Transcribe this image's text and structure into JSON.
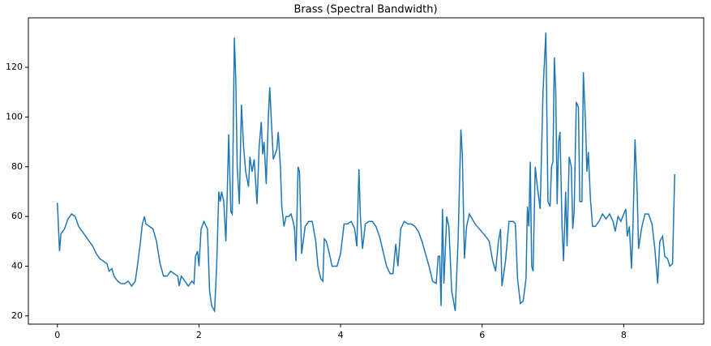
{
  "chart_data": {
    "type": "line",
    "title": "Brass (Spectral Bandwidth)",
    "x": [
      0,
      0.03,
      0.05,
      0.1,
      0.15,
      0.2,
      0.25,
      0.3,
      0.4,
      0.5,
      0.55,
      0.6,
      0.65,
      0.7,
      0.73,
      0.77,
      0.8,
      0.85,
      0.9,
      0.95,
      1.0,
      1.05,
      1.1,
      1.13,
      1.17,
      1.2,
      1.23,
      1.25,
      1.3,
      1.35,
      1.4,
      1.45,
      1.5,
      1.55,
      1.6,
      1.65,
      1.7,
      1.72,
      1.75,
      1.8,
      1.85,
      1.9,
      1.93,
      1.95,
      1.98,
      2.0,
      2.03,
      2.07,
      2.12,
      2.15,
      2.18,
      2.22,
      2.25,
      2.28,
      2.3,
      2.32,
      2.35,
      2.38,
      2.4,
      2.42,
      2.45,
      2.47,
      2.5,
      2.52,
      2.54,
      2.57,
      2.6,
      2.63,
      2.66,
      2.7,
      2.72,
      2.75,
      2.78,
      2.82,
      2.85,
      2.88,
      2.9,
      2.92,
      2.95,
      2.98,
      3.0,
      3.02,
      3.05,
      3.1,
      3.12,
      3.15,
      3.17,
      3.2,
      3.23,
      3.27,
      3.3,
      3.33,
      3.35,
      3.37,
      3.4,
      3.42,
      3.45,
      3.5,
      3.55,
      3.6,
      3.65,
      3.68,
      3.72,
      3.75,
      3.77,
      3.8,
      3.85,
      3.88,
      3.95,
      4.0,
      4.05,
      4.1,
      4.15,
      4.2,
      4.23,
      4.26,
      4.28,
      4.31,
      4.35,
      4.4,
      4.45,
      4.5,
      4.55,
      4.6,
      4.65,
      4.7,
      4.74,
      4.78,
      4.81,
      4.85,
      4.9,
      4.95,
      5.0,
      5.05,
      5.1,
      5.15,
      5.2,
      5.25,
      5.3,
      5.35,
      5.38,
      5.4,
      5.42,
      5.44,
      5.46,
      5.5,
      5.53,
      5.57,
      5.62,
      5.66,
      5.7,
      5.72,
      5.75,
      5.78,
      5.82,
      5.9,
      5.99,
      6.05,
      6.1,
      6.15,
      6.19,
      6.23,
      6.26,
      6.28,
      6.33,
      6.38,
      6.44,
      6.47,
      6.5,
      6.54,
      6.58,
      6.62,
      6.64,
      6.66,
      6.68,
      6.7,
      6.72,
      6.75,
      6.78,
      6.82,
      6.86,
      6.9,
      6.93,
      6.96,
      6.98,
      7.0,
      7.02,
      7.04,
      7.06,
      7.08,
      7.1,
      7.13,
      7.15,
      7.18,
      7.2,
      7.23,
      7.26,
      7.28,
      7.3,
      7.33,
      7.36,
      7.38,
      7.41,
      7.43,
      7.46,
      7.48,
      7.5,
      7.53,
      7.56,
      7.6,
      7.65,
      7.7,
      7.75,
      7.8,
      7.85,
      7.88,
      7.92,
      7.96,
      8.0,
      8.03,
      8.05,
      8.08,
      8.11,
      8.13,
      8.16,
      8.19,
      8.21,
      8.25,
      8.3,
      8.35,
      8.4,
      8.44,
      8.48,
      8.51,
      8.55,
      8.58,
      8.62,
      8.65,
      8.69,
      8.72
    ],
    "series": [
      {
        "color": "#1f77b4",
        "values": [
          65.5,
          46,
          53,
          55,
          59,
          61,
          60,
          56,
          52,
          48,
          45,
          43,
          42,
          41,
          38,
          39,
          36,
          34,
          33,
          33,
          34,
          32,
          34,
          40,
          49,
          57,
          60,
          57,
          56,
          55,
          50,
          41,
          36,
          36,
          38,
          37,
          36,
          32,
          36,
          34,
          32,
          34,
          33,
          44,
          46,
          40,
          55,
          58,
          55,
          30,
          24,
          22,
          40,
          70,
          66,
          70,
          66,
          50,
          70,
          93,
          62,
          61,
          132,
          115,
          80,
          65,
          105,
          88,
          78,
          72,
          84,
          78,
          83,
          65,
          88,
          98,
          85,
          90,
          73,
          100,
          112,
          100,
          83,
          87,
          94,
          80,
          64,
          56,
          60,
          60,
          61,
          58,
          55,
          42,
          80,
          78,
          45,
          56,
          58,
          58,
          50,
          40,
          35,
          34,
          51,
          50,
          44,
          40,
          40,
          45,
          57,
          57,
          58,
          55,
          48,
          79,
          60,
          47,
          57,
          58,
          58,
          56,
          52,
          46,
          40,
          37,
          37,
          49,
          40,
          55,
          58,
          57,
          57,
          56,
          54,
          50,
          45,
          40,
          34,
          33,
          44,
          44,
          24,
          63,
          33,
          60,
          56,
          30,
          22,
          50,
          95,
          85,
          43,
          56,
          61,
          57,
          54,
          52,
          50,
          42,
          38,
          50,
          55,
          32,
          42,
          58,
          58,
          57,
          35,
          25,
          26,
          35,
          64,
          56,
          82,
          40,
          38,
          80,
          72,
          63,
          110,
          134,
          66,
          64,
          80,
          82,
          124,
          110,
          65,
          90,
          94,
          55,
          42,
          70,
          48,
          84,
          80,
          55,
          62,
          106,
          104,
          66,
          66,
          118,
          98,
          78,
          86,
          67,
          56,
          56,
          58,
          61,
          59,
          61,
          58,
          54,
          60,
          58,
          61,
          63,
          52,
          56,
          39,
          55,
          91,
          70,
          47,
          55,
          61,
          61,
          57,
          47,
          33,
          50,
          52,
          44,
          43,
          40,
          41,
          77
        ]
      }
    ],
    "xlim": [
      -0.41,
      9.13
    ],
    "ylim": [
      16.7,
      139.9
    ],
    "xticks": [
      0,
      2,
      4,
      6,
      8
    ],
    "yticks": [
      20,
      40,
      60,
      80,
      100,
      120
    ]
  }
}
